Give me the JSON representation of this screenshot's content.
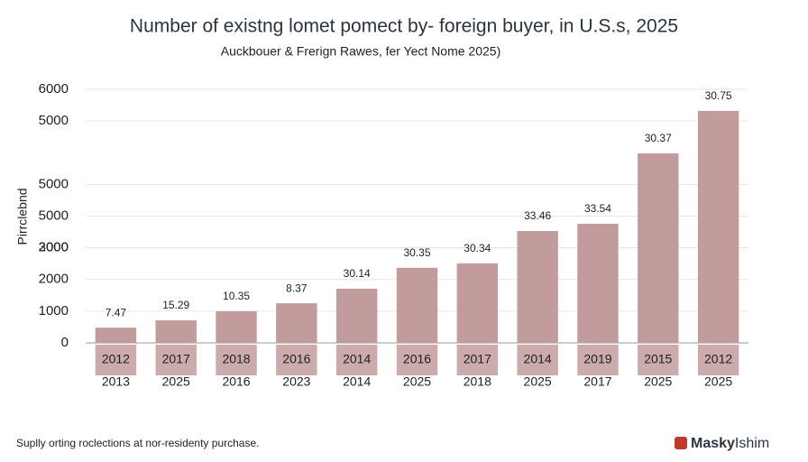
{
  "chart_data": {
    "type": "bar",
    "title": "Number of existng lomet pomect by- foreign buyer, in U.S.s, 2025",
    "subtitle": "Auckbouer & Frerign Rawes, fer Yect Nome 2025)",
    "y_label": "Pirrclebnd",
    "categories": [
      "2012",
      "2017",
      "2018",
      "2016",
      "2014",
      "2016",
      "2017",
      "2014",
      "2019",
      "2015",
      "2012"
    ],
    "secondary_categories": [
      "2013",
      "2025",
      "2016",
      "2023",
      "2014",
      "2025",
      "2018",
      "2025",
      "2017",
      "2025",
      "2025"
    ],
    "values": [
      480,
      710,
      1000,
      1250,
      1710,
      2370,
      2510,
      3530,
      3760,
      5980,
      7320
    ],
    "bar_labels": [
      "7.47",
      "15.29",
      "10.35",
      "8.37",
      "30.14",
      "30.35",
      "30.34",
      "33.46",
      "33.54",
      "30.37",
      "30.75"
    ],
    "color": "#c29c9c",
    "ylim": [
      0,
      8000
    ],
    "yticks": [
      0,
      1000,
      2000,
      {
        "value": 3000,
        "label": "2000"
      },
      {
        "value": 4000,
        "label": "5000"
      },
      3000,
      5000,
      {
        "value": 7000,
        "label": "5000"
      },
      {
        "value": 8000,
        "label": "6000"
      }
    ],
    "grid": true
  },
  "footer": "Suplly orting roclections at nor-residenty purchase.",
  "logo": {
    "bold": "Masky",
    "light": "Ishim"
  }
}
